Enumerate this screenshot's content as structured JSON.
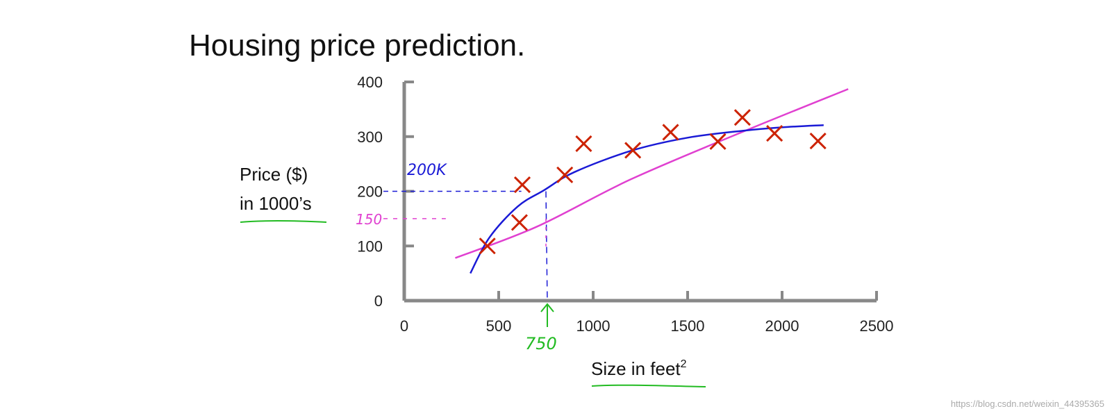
{
  "chart_data": {
    "type": "scatter",
    "title": "Housing price prediction.",
    "xlabel_main": "Size in feet",
    "xlabel_sup": "2",
    "ylabel_line1": "Price ($)",
    "ylabel_line2": "in 1000’s",
    "xlim": [
      0,
      2500
    ],
    "ylim": [
      0,
      400
    ],
    "xticks": [
      0,
      500,
      1000,
      1500,
      2000,
      2500
    ],
    "yticks": [
      0,
      100,
      200,
      300,
      400
    ],
    "grid": false,
    "series": [
      {
        "type": "scatter",
        "marker": "x",
        "color": "#cc2200",
        "points": [
          {
            "x": 440,
            "y": 100
          },
          {
            "x": 610,
            "y": 143
          },
          {
            "x": 625,
            "y": 212
          },
          {
            "x": 850,
            "y": 230
          },
          {
            "x": 950,
            "y": 287
          },
          {
            "x": 1210,
            "y": 275
          },
          {
            "x": 1410,
            "y": 308
          },
          {
            "x": 1660,
            "y": 291
          },
          {
            "x": 1790,
            "y": 335
          },
          {
            "x": 1960,
            "y": 306
          },
          {
            "x": 2190,
            "y": 292
          }
        ]
      },
      {
        "type": "line",
        "color": "#e040d0",
        "points": [
          {
            "x": 270,
            "y": 78
          },
          {
            "x": 700,
            "y": 135
          },
          {
            "x": 1200,
            "y": 222
          },
          {
            "x": 1800,
            "y": 310
          },
          {
            "x": 2350,
            "y": 387
          }
        ]
      },
      {
        "type": "line",
        "color": "#1a1ad6",
        "points": [
          {
            "x": 350,
            "y": 50
          },
          {
            "x": 450,
            "y": 115
          },
          {
            "x": 600,
            "y": 172
          },
          {
            "x": 740,
            "y": 202
          },
          {
            "x": 900,
            "y": 235
          },
          {
            "x": 1200,
            "y": 274
          },
          {
            "x": 1500,
            "y": 298
          },
          {
            "x": 1800,
            "y": 311
          },
          {
            "x": 2000,
            "y": 317
          },
          {
            "x": 2220,
            "y": 321
          }
        ]
      }
    ],
    "annotations": [
      {
        "text": "200K",
        "color": "#1a1ad6"
      },
      {
        "text": "150",
        "color": "#e040d0"
      },
      {
        "text": "750",
        "color": "#22bb22"
      }
    ],
    "reference_values": {
      "x": 750,
      "y_blue": 200,
      "y_pink": 150
    },
    "colors": {
      "axis": "#888888",
      "underline": "#22bb22",
      "arrow": "#22bb22"
    }
  },
  "watermark": "https://blog.csdn.net/weixin_44395365"
}
